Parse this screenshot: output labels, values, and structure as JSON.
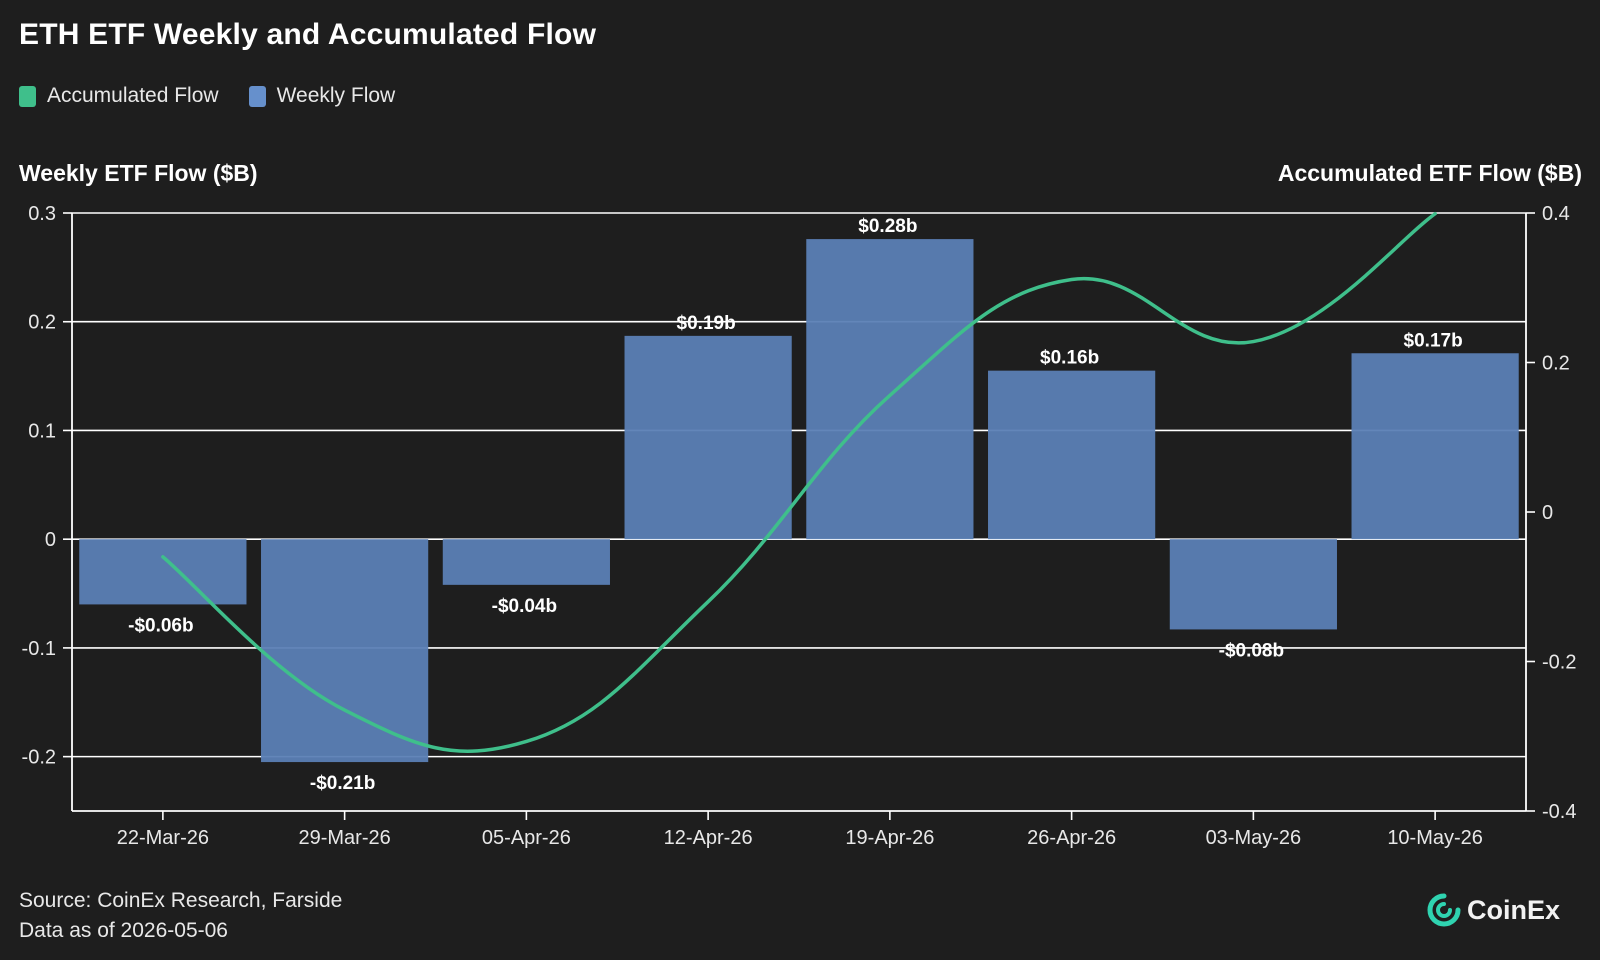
{
  "title": "ETH ETF Weekly and Accumulated Flow",
  "legend": [
    {
      "label": "Accumulated Flow",
      "color": "#3fbf8b"
    },
    {
      "label": "Weekly Flow",
      "color": "#6690cc"
    }
  ],
  "footer": {
    "source": "Source: CoinEx Research, Farside",
    "date": "Data as of 2026-05-06"
  },
  "logo": {
    "text": "CoinEx",
    "icon": "coinex-logo-icon"
  },
  "colors": {
    "background": "#1e1e1e",
    "bar": "#5b7fb5",
    "line": "#3fbf8b",
    "grid": "#ffffff",
    "text": "#ffffff"
  },
  "chart_data": {
    "type": "bar",
    "title": "ETH ETF Weekly and Accumulated Flow",
    "categories": [
      "22-Mar-26",
      "29-Mar-26",
      "05-Apr-26",
      "12-Apr-26",
      "19-Apr-26",
      "26-Apr-26",
      "03-May-26",
      "10-May-26"
    ],
    "series": [
      {
        "name": "Weekly Flow",
        "type": "bar",
        "axis": "left",
        "values": [
          -0.06,
          -0.205,
          -0.042,
          0.187,
          0.276,
          0.155,
          -0.083,
          0.171
        ],
        "labels": [
          "-$0.06b",
          "-$0.21b",
          "-$0.04b",
          "$0.19b",
          "$0.28b",
          "$0.16b",
          "-$0.08b",
          "$0.17b"
        ]
      },
      {
        "name": "Accumulated Flow",
        "type": "line",
        "axis": "right",
        "values": [
          -0.06,
          -0.265,
          -0.307,
          -0.12,
          0.156,
          0.311,
          0.228,
          0.399
        ]
      }
    ],
    "ylabel": "Weekly ETF Flow ($B)",
    "y2label": "Accumulated ETF Flow ($B)",
    "ylim": [
      -0.25,
      0.3
    ],
    "y2lim": [
      -0.4,
      0.4
    ],
    "yticks": [
      "0.3",
      "0.2",
      "0.1",
      "0",
      "-0.1",
      "-0.2"
    ],
    "yticks_values": [
      0.3,
      0.2,
      0.1,
      0,
      -0.1,
      -0.2
    ],
    "y2ticks": [
      "0.4",
      "0.2",
      "0",
      "-0.2",
      "-0.4"
    ],
    "y2ticks_values": [
      0.4,
      0.2,
      0,
      -0.2,
      -0.4
    ],
    "grid": true,
    "legend_position": "top-left"
  }
}
